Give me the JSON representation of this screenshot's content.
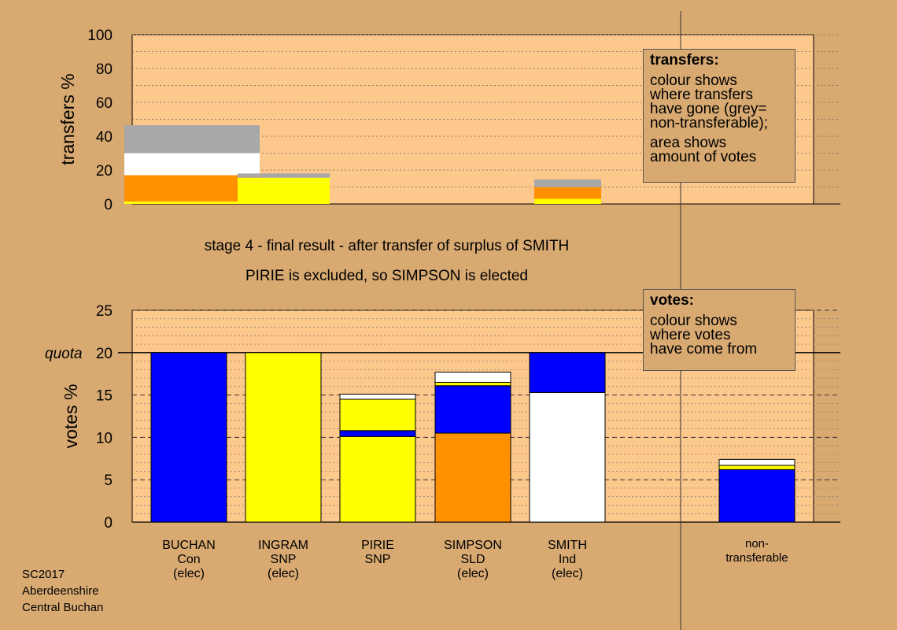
{
  "stage": {
    "line1": "stage 4 - final result - after transfer of surplus of SMITH",
    "line2": "PIRIE is excluded, so SIMPSON is elected"
  },
  "corner": [
    "SC2017",
    "Aberdeenshire",
    "Central Buchan"
  ],
  "legend_transfers": {
    "title": "transfers:",
    "lines1": [
      "colour shows",
      "where transfers",
      "have gone (grey=",
      "non-transferable);"
    ],
    "lines2": [
      "area shows",
      "amount of votes"
    ]
  },
  "legend_votes": {
    "title": "votes:",
    "lines": [
      "colour shows",
      "where votes",
      "have come from"
    ]
  },
  "colors": {
    "background": "#d8aa72",
    "plot": "#fdc88c",
    "Con": "#0000ff",
    "SNP": "#ffff00",
    "SLD": "#ff9000",
    "Ind": "#ffffff",
    "non-transferable": "#a8a8a8"
  },
  "chart_data": [
    {
      "type": "bar",
      "name": "transfers",
      "ylabel": "transfers %",
      "ylim": [
        0,
        100
      ],
      "yticks": [
        0,
        20,
        40,
        60,
        80,
        100
      ],
      "grid": "dotted every 10",
      "bars": [
        {
          "candidate": "BUCHAN",
          "stack": [
            {
              "party": "SNP",
              "value": 1.5
            },
            {
              "party": "SLD",
              "value": 15.5
            },
            {
              "party": "Ind",
              "value": 13
            },
            {
              "party": "non-transferable",
              "value": 16.5
            }
          ]
        },
        {
          "candidate": "INGRAM",
          "stack": [
            {
              "party": "SNP",
              "value": 15.5
            },
            {
              "party": "non-transferable",
              "value": 2.5
            }
          ]
        },
        {
          "candidate": "SMITH",
          "stack": [
            {
              "party": "SNP",
              "value": 3
            },
            {
              "party": "SLD",
              "value": 7
            },
            {
              "party": "non-transferable",
              "value": 4.5
            }
          ]
        }
      ]
    },
    {
      "type": "bar",
      "name": "votes",
      "ylabel": "votes %",
      "ylim": [
        0,
        25
      ],
      "yticks": [
        0,
        5,
        10,
        15,
        20,
        25
      ],
      "quota": 20,
      "quota_label": "quota",
      "grid": "dotted every 1, dashed every 5",
      "categories": [
        {
          "lines": [
            "BUCHAN",
            "Con",
            "(elec)"
          ],
          "stack": [
            {
              "party": "Con",
              "value": 20
            }
          ]
        },
        {
          "lines": [
            "INGRAM",
            "SNP",
            "(elec)"
          ],
          "stack": [
            {
              "party": "SNP",
              "value": 20
            }
          ]
        },
        {
          "lines": [
            "PIRIE",
            "SNP"
          ],
          "stack": [
            {
              "party": "SNP",
              "value": 10.1
            },
            {
              "party": "Con",
              "value": 0.7
            },
            {
              "party": "SNP",
              "value": 3.7
            },
            {
              "party": "Ind",
              "value": 0.6
            }
          ]
        },
        {
          "lines": [
            "SIMPSON",
            "SLD",
            "(elec)"
          ],
          "stack": [
            {
              "party": "SLD",
              "value": 10.5
            },
            {
              "party": "Con",
              "value": 5.6
            },
            {
              "party": "SNP",
              "value": 0.4
            },
            {
              "party": "Ind",
              "value": 1.2
            }
          ]
        },
        {
          "lines": [
            "SMITH",
            "Ind",
            "(elec)"
          ],
          "stack": [
            {
              "party": "Ind",
              "value": 15.3
            },
            {
              "party": "Con",
              "value": 4.7
            }
          ]
        },
        {
          "lines": [
            "non-",
            "transferable"
          ],
          "stack": [
            {
              "party": "Con",
              "value": 6.2
            },
            {
              "party": "SNP",
              "value": 0.5
            },
            {
              "party": "Ind",
              "value": 0.7
            }
          ]
        }
      ]
    }
  ]
}
